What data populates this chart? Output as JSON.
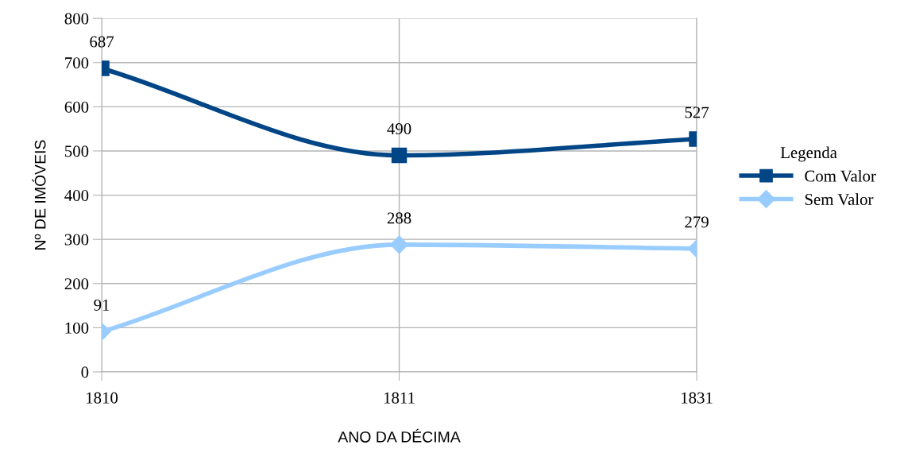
{
  "chart_data": {
    "type": "line",
    "xlabel": "ANO DA DÉCIMA",
    "ylabel": "Nº DE IMÓVEIS",
    "legend_title": "Legenda",
    "categories": [
      "1810",
      "1811",
      "1831"
    ],
    "series": [
      {
        "name": "Com Valor",
        "color": "#004586",
        "values": [
          687,
          490,
          527
        ],
        "marker": "square"
      },
      {
        "name": "Sem Valor",
        "color": "#99ccff",
        "values": [
          91,
          288,
          279
        ],
        "marker": "diamond"
      }
    ],
    "ylim": [
      0,
      800
    ],
    "yticks": [
      0,
      100,
      200,
      300,
      400,
      500,
      600,
      700,
      800
    ],
    "grid": true,
    "legend": "right",
    "data_labels": true,
    "line_style": "solid"
  }
}
